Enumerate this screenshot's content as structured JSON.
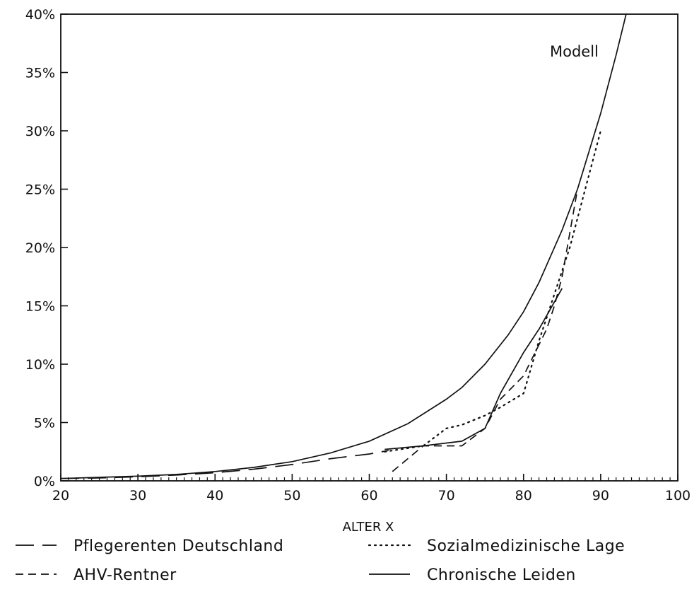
{
  "chart_data": {
    "type": "line",
    "title": "",
    "xlabel": "ALTER X",
    "ylabel": "",
    "xlim": [
      20,
      100
    ],
    "ylim": [
      0,
      40
    ],
    "xticks": [
      20,
      30,
      40,
      50,
      60,
      70,
      80,
      90,
      100
    ],
    "yticks": [
      0,
      5,
      10,
      15,
      20,
      25,
      30,
      35,
      40
    ],
    "ytick_labels": [
      "0%",
      "5%",
      "10%",
      "15%",
      "20%",
      "25%",
      "30%",
      "35%",
      "40%"
    ],
    "grid": false,
    "legend_position": "bottom",
    "annotation": "Modell",
    "series": [
      {
        "name": "Modell",
        "style": "solid",
        "x": [
          20,
          25,
          30,
          35,
          40,
          45,
          50,
          55,
          60,
          65,
          70,
          72,
          75,
          78,
          80,
          82,
          85,
          87,
          90,
          92,
          93.3
        ],
        "y": [
          0.2,
          0.3,
          0.4,
          0.55,
          0.8,
          1.15,
          1.65,
          2.4,
          3.4,
          4.9,
          7.0,
          8.0,
          10.0,
          12.5,
          14.5,
          17.0,
          21.5,
          25.0,
          31.5,
          36.5,
          40.0
        ]
      },
      {
        "name": "Pflegerenten Deutschland",
        "style": "longdash",
        "x": [
          20,
          25,
          30,
          35,
          40,
          45,
          50,
          55,
          60,
          62.5
        ],
        "y": [
          0.2,
          0.25,
          0.35,
          0.5,
          0.7,
          1.0,
          1.4,
          1.9,
          2.3,
          2.6
        ]
      },
      {
        "name": "AHV-Rentner",
        "style": "dash",
        "x": [
          63,
          67,
          72,
          75,
          77,
          80,
          83,
          84,
          85,
          87
        ],
        "y": [
          0.8,
          3.0,
          3.0,
          4.5,
          7.0,
          9.0,
          13.0,
          15.0,
          17.5,
          25.0
        ]
      },
      {
        "name": "Sozialmedizinische Lage",
        "style": "dot",
        "x": [
          62,
          67,
          70,
          72,
          75,
          77,
          80,
          82,
          84,
          86,
          88,
          90
        ],
        "y": [
          2.5,
          3.0,
          4.5,
          4.8,
          5.6,
          6.3,
          7.5,
          12.0,
          16.0,
          20.0,
          25.0,
          30.0
        ]
      },
      {
        "name": "Chronische Leiden",
        "style": "solid",
        "x": [
          62,
          67,
          72,
          75,
          77,
          80,
          82,
          85
        ],
        "y": [
          2.7,
          3.0,
          3.4,
          4.5,
          7.5,
          11.0,
          13.0,
          16.5
        ]
      }
    ],
    "legend": [
      {
        "label": "Pflegerenten Deutschland",
        "style": "longdash"
      },
      {
        "label": "AHV-Rentner",
        "style": "dash"
      },
      {
        "label": "Sozialmedizinische Lage",
        "style": "dot"
      },
      {
        "label": "Chronische Leiden",
        "style": "solid"
      }
    ]
  }
}
